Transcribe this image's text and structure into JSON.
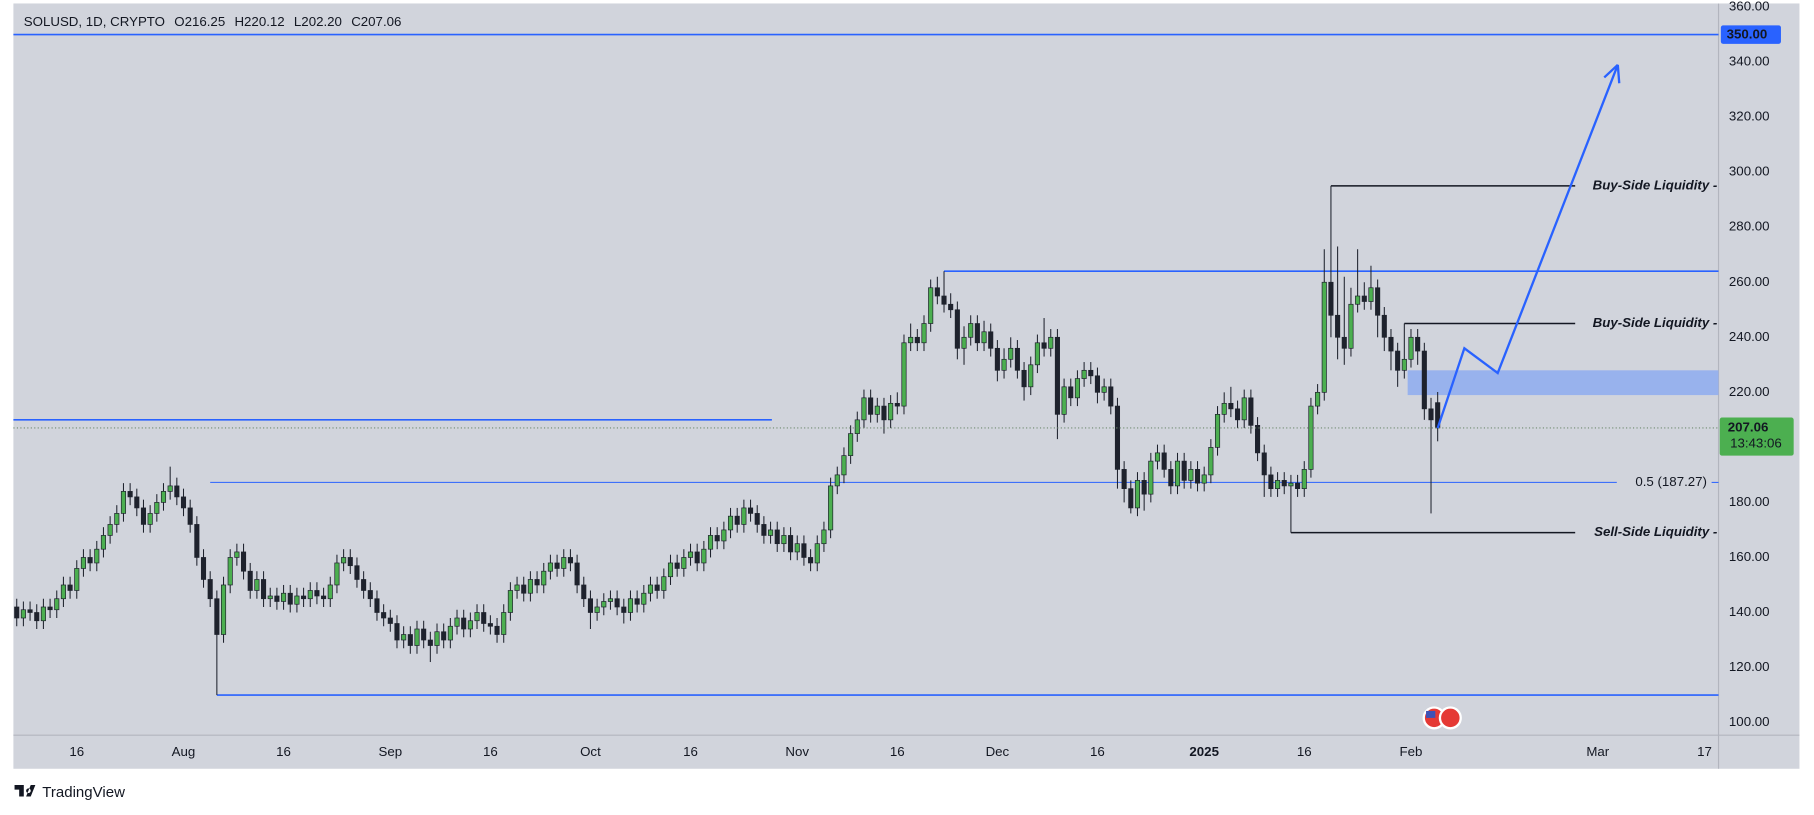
{
  "header": {
    "symbol": "SOLUSD, 1D, CRYPTO",
    "ohlc": [
      "O216.25",
      "H220.12",
      "L202.20",
      "C207.06"
    ]
  },
  "chart_data": {
    "type": "candlestick",
    "x": [
      0,
      1,
      2,
      3,
      4,
      5,
      6,
      7,
      8,
      9,
      10,
      11,
      12,
      13,
      14,
      15,
      16,
      17,
      18,
      19,
      20,
      21,
      22,
      23,
      24,
      25,
      26,
      27,
      28,
      29,
      30,
      31,
      32,
      33,
      34,
      35,
      36,
      37,
      38,
      39,
      40,
      41,
      42,
      43,
      44,
      45,
      46,
      47,
      48,
      49,
      50,
      51,
      52,
      53,
      54,
      55,
      56,
      57,
      58,
      59,
      60,
      61,
      62,
      63,
      64,
      65,
      66,
      67,
      68,
      69,
      70,
      71,
      72,
      73,
      74,
      75,
      76,
      77,
      78,
      79,
      80,
      81,
      82,
      83,
      84,
      85,
      86,
      87,
      88,
      89,
      90,
      91,
      92,
      93,
      94,
      95,
      96,
      97,
      98,
      99,
      100,
      101,
      102,
      103,
      104,
      105,
      106,
      107,
      108,
      109,
      110,
      111,
      112,
      113,
      114,
      115,
      116,
      117,
      118,
      119,
      120,
      121,
      122,
      123,
      124,
      125,
      126,
      127,
      128,
      129,
      130,
      131,
      132,
      133,
      134,
      135,
      136,
      137,
      138,
      139,
      140,
      141,
      142,
      143,
      144,
      145,
      146,
      147,
      148,
      149,
      150,
      151,
      152,
      153,
      154,
      155,
      156,
      157,
      158,
      159,
      160,
      161,
      162,
      163,
      164,
      165,
      166,
      167,
      168,
      169,
      170,
      171,
      172,
      173,
      174,
      175,
      176,
      177,
      178,
      179,
      180,
      181,
      182,
      183,
      184,
      185,
      186,
      187,
      188,
      189,
      190,
      191,
      192,
      193,
      194,
      195,
      196,
      197,
      198,
      199,
      200,
      201,
      202,
      203,
      204,
      205,
      206,
      207,
      208,
      209,
      210,
      211,
      212,
      213
    ],
    "open": [
      142,
      138,
      141,
      140,
      137,
      142,
      141,
      145,
      150,
      148,
      156,
      160,
      158,
      163,
      168,
      172,
      176,
      184,
      182,
      178,
      172,
      176,
      180,
      184,
      186,
      182,
      178,
      172,
      160,
      152,
      145,
      132,
      150,
      160,
      162,
      155,
      148,
      152,
      145,
      146,
      144,
      147,
      143,
      146,
      145,
      148,
      146,
      145,
      150,
      158,
      160,
      157,
      152,
      148,
      145,
      140,
      138,
      136,
      130,
      132,
      128,
      134,
      130,
      128,
      133,
      130,
      135,
      138,
      134,
      137,
      140,
      136,
      135,
      132,
      140,
      148,
      150,
      147,
      152,
      150,
      155,
      158,
      156,
      160,
      158,
      150,
      145,
      140,
      142,
      144,
      145,
      142,
      140,
      145,
      143,
      147,
      150,
      148,
      153,
      158,
      156,
      160,
      162,
      158,
      163,
      168,
      166,
      170,
      175,
      172,
      178,
      176,
      172,
      168,
      170,
      165,
      168,
      162,
      165,
      160,
      158,
      165,
      170,
      186,
      190,
      197,
      205,
      210,
      218,
      212,
      215,
      210,
      216,
      215,
      238,
      240,
      238,
      245,
      258,
      255,
      252,
      250,
      236,
      240,
      245,
      238,
      242,
      236,
      228,
      232,
      236,
      228,
      222,
      230,
      238,
      236,
      240,
      212,
      222,
      218,
      225,
      228,
      226,
      220,
      222,
      215,
      192,
      185,
      178,
      188,
      183,
      195,
      198,
      192,
      186,
      195,
      188,
      192,
      187,
      190,
      200,
      212,
      216,
      214,
      210,
      218,
      208,
      198,
      190,
      185,
      188,
      186,
      187,
      185,
      192,
      215,
      220,
      260,
      248,
      240,
      236,
      252,
      255,
      253,
      258,
      248,
      240,
      235,
      228,
      232,
      240,
      235,
      214,
      216.25
    ],
    "high": [
      145,
      144,
      144,
      143,
      145,
      145,
      148,
      153,
      153,
      159,
      163,
      163,
      166,
      171,
      175,
      179,
      187,
      187,
      185,
      181,
      179,
      183,
      187,
      193,
      189,
      185,
      181,
      175,
      163,
      155,
      148,
      153,
      163,
      165,
      165,
      158,
      155,
      155,
      149,
      149,
      150,
      150,
      149,
      149,
      151,
      151,
      149,
      153,
      161,
      163,
      163,
      160,
      155,
      151,
      148,
      143,
      141,
      139,
      135,
      135,
      137,
      137,
      133,
      136,
      136,
      138,
      141,
      141,
      140,
      143,
      143,
      139,
      138,
      143,
      151,
      153,
      153,
      155,
      155,
      158,
      161,
      161,
      163,
      163,
      161,
      153,
      148,
      145,
      147,
      148,
      148,
      145,
      148,
      148,
      150,
      153,
      153,
      156,
      161,
      161,
      163,
      165,
      165,
      166,
      171,
      171,
      173,
      178,
      178,
      181,
      181,
      179,
      175,
      173,
      173,
      171,
      171,
      168,
      168,
      163,
      168,
      173,
      189,
      193,
      200,
      208,
      213,
      221,
      221,
      218,
      218,
      219,
      220,
      241,
      245,
      243,
      248,
      261,
      262,
      264,
      256,
      253,
      244,
      248,
      248,
      246,
      245,
      239,
      236,
      240,
      239,
      231,
      233,
      241,
      247,
      243,
      243,
      225,
      225,
      228,
      231,
      231,
      229,
      225,
      225,
      218,
      195,
      188,
      191,
      191,
      198,
      201,
      201,
      195,
      198,
      198,
      195,
      195,
      193,
      203,
      215,
      220,
      222,
      217,
      221,
      221,
      211,
      201,
      193,
      191,
      191,
      190,
      190,
      195,
      218,
      223,
      272,
      295,
      273,
      262,
      258,
      272,
      260,
      266,
      261,
      251,
      243,
      238,
      245,
      243,
      243,
      238,
      218,
      220.12
    ],
    "low": [
      135,
      135,
      137,
      134,
      134,
      138,
      138,
      142,
      145,
      145,
      153,
      155,
      155,
      160,
      165,
      169,
      173,
      179,
      175,
      169,
      169,
      173,
      177,
      181,
      179,
      175,
      169,
      157,
      149,
      142,
      110,
      129,
      147,
      157,
      152,
      145,
      145,
      142,
      142,
      141,
      141,
      140,
      140,
      142,
      142,
      143,
      142,
      142,
      147,
      155,
      154,
      149,
      145,
      142,
      137,
      135,
      133,
      127,
      127,
      125,
      125,
      127,
      122,
      125,
      127,
      127,
      132,
      131,
      131,
      134,
      133,
      132,
      129,
      129,
      137,
      145,
      144,
      144,
      147,
      147,
      152,
      153,
      153,
      155,
      147,
      142,
      134,
      137,
      139,
      141,
      139,
      136,
      137,
      140,
      140,
      144,
      145,
      145,
      150,
      153,
      153,
      157,
      155,
      155,
      160,
      163,
      163,
      167,
      169,
      169,
      173,
      169,
      165,
      165,
      162,
      162,
      159,
      159,
      157,
      155,
      155,
      162,
      167,
      183,
      187,
      194,
      202,
      207,
      209,
      209,
      205,
      207,
      212,
      212,
      235,
      235,
      235,
      242,
      252,
      249,
      247,
      232,
      230,
      237,
      235,
      235,
      233,
      224,
      225,
      229,
      225,
      217,
      219,
      227,
      233,
      233,
      203,
      209,
      215,
      215,
      222,
      223,
      216,
      217,
      212,
      185,
      180,
      176,
      175,
      177,
      180,
      192,
      189,
      183,
      183,
      185,
      185,
      184,
      184,
      187,
      197,
      209,
      211,
      207,
      207,
      205,
      195,
      182,
      182,
      182,
      183,
      169,
      182,
      182,
      189,
      212,
      217,
      240,
      232,
      230,
      233,
      249,
      250,
      250,
      240,
      235,
      228,
      222,
      225,
      229,
      230,
      210,
      176,
      202.2
    ],
    "close": [
      138,
      141,
      140,
      137,
      142,
      141,
      145,
      150,
      148,
      156,
      160,
      158,
      163,
      168,
      172,
      176,
      184,
      182,
      178,
      172,
      176,
      180,
      184,
      186,
      182,
      178,
      172,
      160,
      152,
      145,
      132,
      150,
      160,
      162,
      155,
      148,
      152,
      145,
      146,
      144,
      147,
      143,
      146,
      145,
      148,
      146,
      145,
      150,
      158,
      160,
      157,
      152,
      148,
      145,
      140,
      138,
      136,
      130,
      132,
      128,
      134,
      130,
      128,
      133,
      130,
      135,
      138,
      134,
      137,
      140,
      136,
      135,
      132,
      140,
      148,
      150,
      147,
      152,
      150,
      155,
      158,
      156,
      160,
      158,
      150,
      145,
      140,
      142,
      144,
      145,
      142,
      140,
      145,
      143,
      147,
      150,
      148,
      153,
      158,
      156,
      160,
      162,
      158,
      163,
      168,
      166,
      170,
      175,
      172,
      178,
      176,
      172,
      168,
      170,
      165,
      168,
      162,
      165,
      160,
      158,
      165,
      170,
      186,
      190,
      197,
      205,
      210,
      218,
      212,
      215,
      210,
      216,
      215,
      238,
      240,
      238,
      245,
      258,
      255,
      252,
      250,
      236,
      240,
      245,
      238,
      242,
      236,
      228,
      232,
      236,
      228,
      222,
      230,
      238,
      236,
      240,
      212,
      222,
      218,
      225,
      228,
      226,
      220,
      222,
      215,
      192,
      185,
      178,
      188,
      183,
      195,
      198,
      192,
      186,
      195,
      188,
      192,
      187,
      190,
      200,
      212,
      216,
      214,
      210,
      218,
      208,
      198,
      190,
      185,
      188,
      186,
      187,
      185,
      192,
      215,
      220,
      260,
      248,
      240,
      236,
      252,
      255,
      253,
      258,
      248,
      240,
      235,
      228,
      232,
      240,
      235,
      214,
      210,
      207.06
    ],
    "up_color": "#4caf50",
    "down_color": "#1e222d",
    "xlim": [
      -0.5,
      255.1
    ],
    "ylim": [
      95.4,
      361.3
    ],
    "xticks": [
      {
        "value": 9,
        "label": "16"
      },
      {
        "value": 25,
        "label": "Aug"
      },
      {
        "value": 40,
        "label": "16"
      },
      {
        "value": 56,
        "label": "Sep"
      },
      {
        "value": 71,
        "label": "16"
      },
      {
        "value": 86,
        "label": "Oct"
      },
      {
        "value": 101,
        "label": "16"
      },
      {
        "value": 117,
        "label": "Nov"
      },
      {
        "value": 132,
        "label": "16"
      },
      {
        "value": 147,
        "label": "Dec"
      },
      {
        "value": 162,
        "label": "16"
      },
      {
        "value": 178,
        "label": "2025",
        "bold": true
      },
      {
        "value": 193,
        "label": "16"
      },
      {
        "value": 209,
        "label": "Feb"
      },
      {
        "value": 237,
        "label": "Mar"
      },
      {
        "value": 253,
        "label": "17"
      }
    ],
    "yticks": [
      {
        "value": 100,
        "label": "100.00"
      },
      {
        "value": 120,
        "label": "120.00"
      },
      {
        "value": 140,
        "label": "140.00"
      },
      {
        "value": 160,
        "label": "160.00"
      },
      {
        "value": 180,
        "label": "180.00"
      },
      {
        "value": 200,
        "label": "200.00"
      },
      {
        "value": 220,
        "label": "220.00"
      },
      {
        "value": 240,
        "label": "240.00"
      },
      {
        "value": 260,
        "label": "260.00"
      },
      {
        "value": 280,
        "label": "280.00"
      },
      {
        "value": 300,
        "label": "300.00"
      },
      {
        "value": 320,
        "label": "320.00"
      },
      {
        "value": 340,
        "label": "340.00"
      },
      {
        "value": 360,
        "label": "360.00"
      }
    ],
    "level_color": "#2962ff",
    "levels": [
      {
        "value": 350,
        "start": -0.5,
        "label": "350.00",
        "label_style": "axis-tag"
      },
      {
        "value": 264,
        "start": 139
      },
      {
        "value": 210,
        "start": -0.5,
        "end": 113.2
      },
      {
        "value": 187.27,
        "start": 29,
        "label": "0.5 (187.27)",
        "label_style": "inline"
      },
      {
        "value": 110,
        "start": 30
      }
    ],
    "liquidity_color": "#131722",
    "liquidity": [
      {
        "value": 295,
        "start": 197,
        "label": "Buy-Side Liquidity -"
      },
      {
        "value": 245,
        "start": 208,
        "label": "Buy-Side Liquidity -"
      },
      {
        "value": 169,
        "start": 191,
        "label": "Sell-Side Liquidity -"
      }
    ],
    "zone": {
      "x": [
        208.5,
        255.1
      ],
      "y": [
        219,
        228
      ],
      "color": "#8eabf0"
    },
    "projection": {
      "x": [
        213,
        217,
        222,
        240
      ],
      "y": [
        207,
        236,
        227,
        339
      ],
      "color": "#2962ff"
    },
    "countdown": "13:43:06"
  },
  "footer": {
    "brand": "TradingView"
  }
}
